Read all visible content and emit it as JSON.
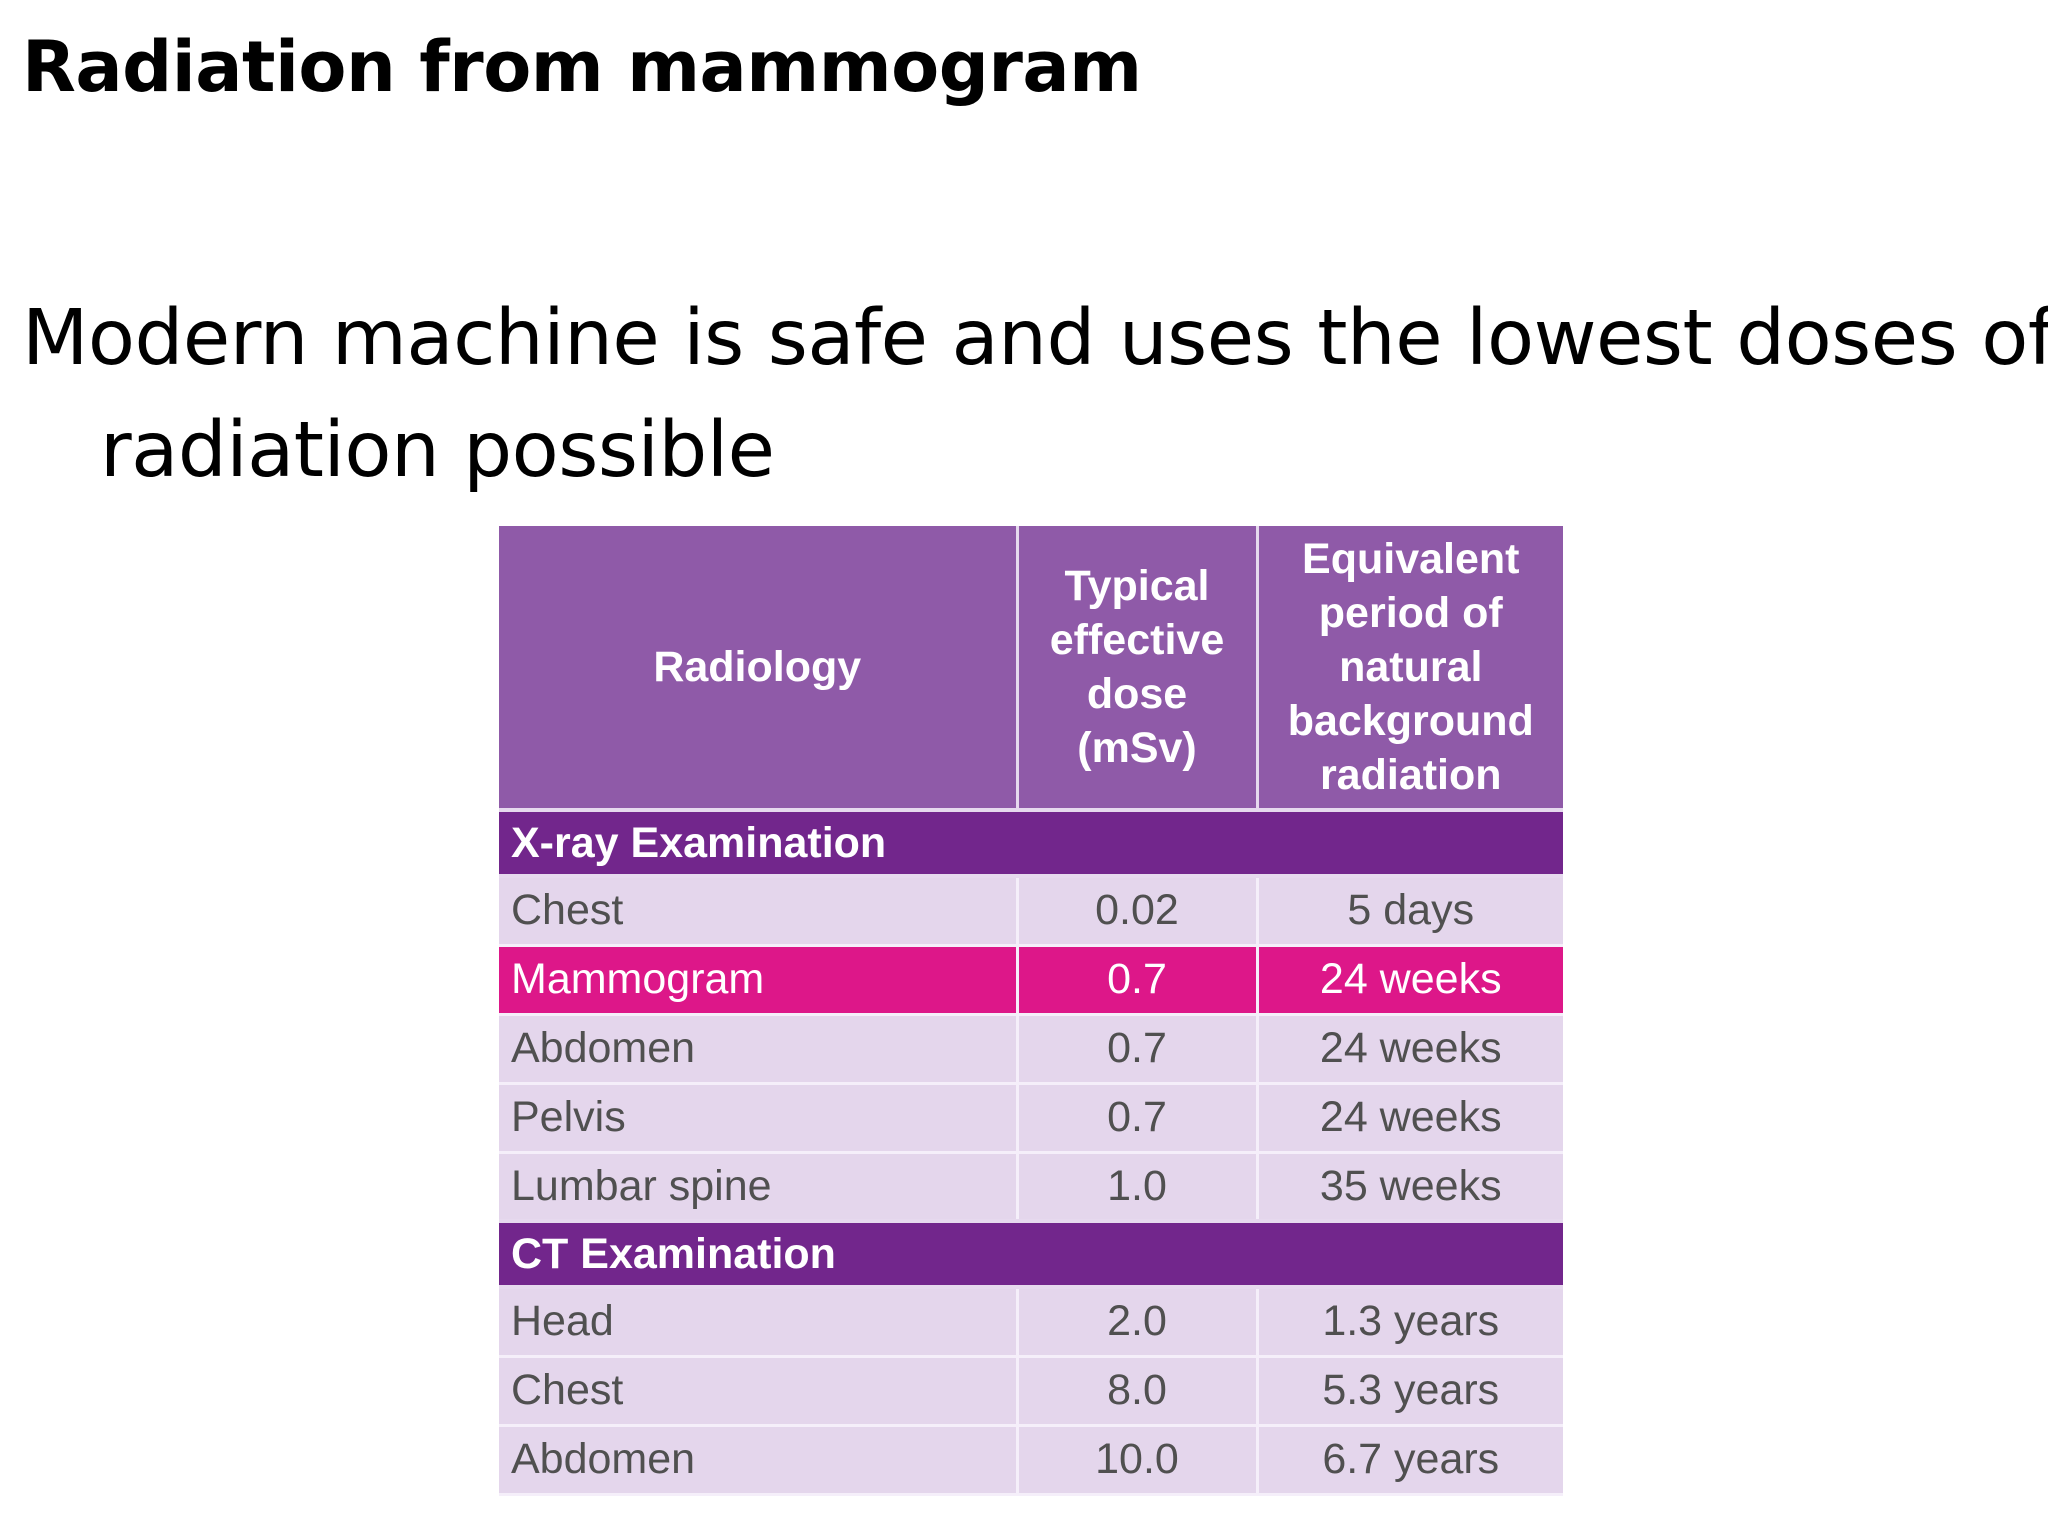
{
  "title": "Radiation from mammogram",
  "body_text": "Modern machine is safe and uses the lowest doses of radiation possible",
  "table": {
    "headers": {
      "col1": "Radiology",
      "col2": "Typical effective dose (mSv)",
      "col3": "Equivalent period of natural background radiation"
    },
    "sections": [
      {
        "label": "X-ray Examination",
        "rows": [
          {
            "name": "Chest",
            "dose": "0.02",
            "period": "5 days",
            "highlight": false
          },
          {
            "name": "Mammogram",
            "dose": "0.7",
            "period": "24 weeks",
            "highlight": true
          },
          {
            "name": "Abdomen",
            "dose": "0.7",
            "period": "24 weeks",
            "highlight": false
          },
          {
            "name": "Pelvis",
            "dose": "0.7",
            "period": "24 weeks",
            "highlight": false
          },
          {
            "name": "Lumbar spine",
            "dose": "1.0",
            "period": "35 weeks",
            "highlight": false
          }
        ]
      },
      {
        "label": "CT Examination",
        "rows": [
          {
            "name": "Head",
            "dose": "2.0",
            "period": "1.3 years",
            "highlight": false
          },
          {
            "name": "Chest",
            "dose": "8.0",
            "period": "5.3 years",
            "highlight": false
          },
          {
            "name": "Abdomen",
            "dose": "10.0",
            "period": "6.7 years",
            "highlight": false
          }
        ]
      }
    ]
  },
  "colors": {
    "header_bg": "#8f5aa8",
    "section_bg": "#72268c",
    "row_bg": "#e4d6ec",
    "highlight_bg": "#dd1789"
  }
}
